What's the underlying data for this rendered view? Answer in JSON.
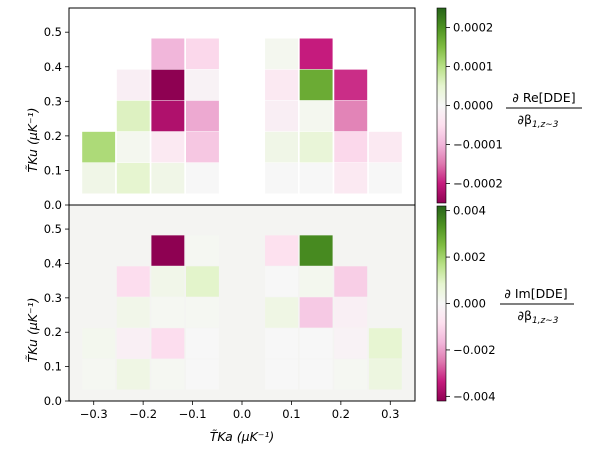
{
  "chart_data": [
    {
      "type": "heatmap",
      "panel": "top",
      "colorbar_label": {
        "numerator": "∂ Re[DDE]",
        "denominator": "∂β",
        "denominator_sub": "1,z∼3"
      },
      "xlabel": "T̃Ka (μK⁻¹)",
      "ylabel": "T̃Ku (μK⁻¹)",
      "xlim": [
        -0.35,
        0.35
      ],
      "ylim": [
        0.0,
        0.57
      ],
      "xticks": [
        "−0.3",
        "−0.2",
        "−0.1",
        "0.0",
        "0.1",
        "0.2",
        "0.3"
      ],
      "yticks": [
        "0.0",
        "0.1",
        "0.2",
        "0.3",
        "0.4",
        "0.5"
      ],
      "background": "#ffffff",
      "clim": [
        -0.00025,
        0.00025
      ],
      "colorbar_ticks": [
        "0.0002",
        "0.0001",
        "0.0000",
        "−0.0001",
        "−0.0002"
      ],
      "cells": [
        {
          "x": -0.29,
          "y": 0.0775,
          "value": 2e-05
        },
        {
          "x": -0.29,
          "y": 0.1675,
          "value": 0.00011
        },
        {
          "x": -0.22,
          "y": 0.0775,
          "value": 5e-05
        },
        {
          "x": -0.22,
          "y": 0.1675,
          "value": 1e-05
        },
        {
          "x": -0.22,
          "y": 0.2575,
          "value": 6e-05
        },
        {
          "x": -0.22,
          "y": 0.3475,
          "value": -2e-05
        },
        {
          "x": -0.15,
          "y": 0.0775,
          "value": 2e-05
        },
        {
          "x": -0.15,
          "y": 0.1675,
          "value": -3e-05
        },
        {
          "x": -0.15,
          "y": 0.2575,
          "value": -0.00022
        },
        {
          "x": -0.15,
          "y": 0.3475,
          "value": -0.00025
        },
        {
          "x": -0.15,
          "y": 0.4375,
          "value": -0.0001
        },
        {
          "x": -0.08,
          "y": 0.0775,
          "value": 0.0
        },
        {
          "x": -0.08,
          "y": 0.1675,
          "value": -8e-05
        },
        {
          "x": -0.08,
          "y": 0.2575,
          "value": -0.00011
        },
        {
          "x": -0.08,
          "y": 0.3475,
          "value": -1e-05
        },
        {
          "x": -0.08,
          "y": 0.4375,
          "value": -6e-05
        },
        {
          "x": 0.08,
          "y": 0.0775,
          "value": 0.0
        },
        {
          "x": 0.08,
          "y": 0.1675,
          "value": 2e-05
        },
        {
          "x": 0.08,
          "y": 0.2575,
          "value": -2e-05
        },
        {
          "x": 0.08,
          "y": 0.3475,
          "value": -3e-05
        },
        {
          "x": 0.08,
          "y": 0.4375,
          "value": 1e-05
        },
        {
          "x": 0.15,
          "y": 0.0775,
          "value": 0.0
        },
        {
          "x": 0.15,
          "y": 0.1675,
          "value": 4e-05
        },
        {
          "x": 0.15,
          "y": 0.2575,
          "value": 1e-05
        },
        {
          "x": 0.15,
          "y": 0.3475,
          "value": 0.00017
        },
        {
          "x": 0.15,
          "y": 0.4375,
          "value": -0.0002
        },
        {
          "x": 0.22,
          "y": 0.0775,
          "value": -3e-05
        },
        {
          "x": 0.22,
          "y": 0.1675,
          "value": -6e-05
        },
        {
          "x": 0.22,
          "y": 0.2575,
          "value": -0.00014
        },
        {
          "x": 0.22,
          "y": 0.3475,
          "value": -0.00019
        },
        {
          "x": 0.29,
          "y": 0.0775,
          "value": 0.0
        },
        {
          "x": 0.29,
          "y": 0.1675,
          "value": -3e-05
        }
      ]
    },
    {
      "type": "heatmap",
      "panel": "bottom",
      "colorbar_label": {
        "numerator": "∂ Im[DDE]",
        "denominator": "∂β",
        "denominator_sub": "1,z∼3"
      },
      "xlabel": "T̃Ka (μK⁻¹)",
      "ylabel": "T̃Ku (μK⁻¹)",
      "xlim": [
        -0.35,
        0.35
      ],
      "ylim": [
        0.0,
        0.57
      ],
      "xticks": [
        "−0.3",
        "−0.2",
        "−0.1",
        "0.0",
        "0.1",
        "0.2",
        "0.3"
      ],
      "yticks": [
        "0.0",
        "0.1",
        "0.2",
        "0.3",
        "0.4",
        "0.5"
      ],
      "background": "#f4f4f2",
      "clim": [
        -0.0042,
        0.0042
      ],
      "colorbar_ticks": [
        "0.004",
        "0.002",
        "0.000",
        "−0.002",
        "−0.004"
      ],
      "cells": [
        {
          "x": -0.29,
          "y": 0.0775,
          "value": 0.0001
        },
        {
          "x": -0.29,
          "y": 0.1675,
          "value": 0.0002
        },
        {
          "x": -0.22,
          "y": 0.0775,
          "value": 0.0004
        },
        {
          "x": -0.22,
          "y": 0.1675,
          "value": -0.0003
        },
        {
          "x": -0.22,
          "y": 0.2575,
          "value": 0.0003
        },
        {
          "x": -0.22,
          "y": 0.3475,
          "value": -0.0009
        },
        {
          "x": -0.15,
          "y": 0.0775,
          "value": 0.0001
        },
        {
          "x": -0.15,
          "y": 0.1675,
          "value": -0.0009
        },
        {
          "x": -0.15,
          "y": 0.2575,
          "value": 0.0001
        },
        {
          "x": -0.15,
          "y": 0.3475,
          "value": 0.0003
        },
        {
          "x": -0.15,
          "y": 0.4375,
          "value": -0.0042
        },
        {
          "x": -0.08,
          "y": 0.0775,
          "value": 0.0
        },
        {
          "x": -0.08,
          "y": 0.1675,
          "value": 0.0
        },
        {
          "x": -0.08,
          "y": 0.2575,
          "value": 0.0001
        },
        {
          "x": -0.08,
          "y": 0.3475,
          "value": 0.0009
        },
        {
          "x": -0.08,
          "y": 0.4375,
          "value": 0.0001
        },
        {
          "x": 0.08,
          "y": 0.0775,
          "value": 0.0
        },
        {
          "x": 0.08,
          "y": 0.1675,
          "value": 0.0
        },
        {
          "x": 0.08,
          "y": 0.2575,
          "value": 0.0004
        },
        {
          "x": 0.08,
          "y": 0.3475,
          "value": 0.0
        },
        {
          "x": 0.08,
          "y": 0.4375,
          "value": -0.0008
        },
        {
          "x": 0.15,
          "y": 0.0775,
          "value": 0.0
        },
        {
          "x": 0.15,
          "y": 0.1675,
          "value": 0.0
        },
        {
          "x": 0.15,
          "y": 0.2575,
          "value": -0.0013
        },
        {
          "x": 0.15,
          "y": 0.3475,
          "value": 0.0002
        },
        {
          "x": 0.15,
          "y": 0.4375,
          "value": 0.0035
        },
        {
          "x": 0.22,
          "y": 0.0775,
          "value": 0.0001
        },
        {
          "x": 0.22,
          "y": 0.1675,
          "value": -0.0002
        },
        {
          "x": 0.22,
          "y": 0.2575,
          "value": -0.0003
        },
        {
          "x": 0.22,
          "y": 0.3475,
          "value": -0.0012
        },
        {
          "x": 0.29,
          "y": 0.0775,
          "value": 0.0005
        },
        {
          "x": 0.29,
          "y": 0.1675,
          "value": 0.0008
        }
      ]
    }
  ],
  "colormap": {
    "name": "PiYG",
    "stops": [
      "#8e0152",
      "#c51b7d",
      "#de77ae",
      "#f1b6da",
      "#fde0ef",
      "#f7f7f7",
      "#e6f5d0",
      "#b8e186",
      "#7fbc41",
      "#4d9221",
      "#276419"
    ]
  }
}
